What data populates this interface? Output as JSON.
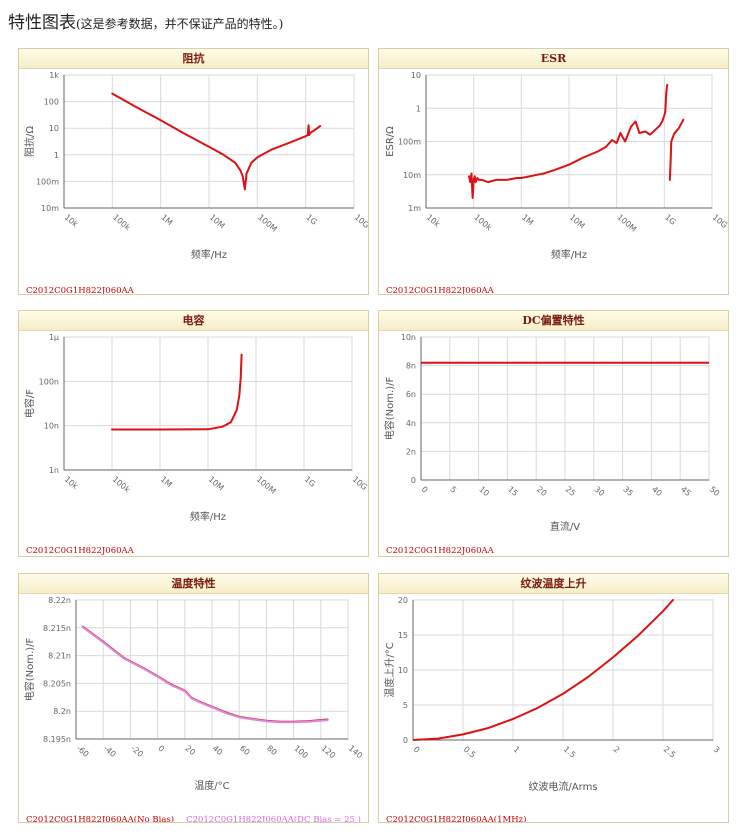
{
  "header": {
    "title": "特性图表",
    "note": "(这是参考数据，并不保证产品的特性。)"
  },
  "chart_data": [
    {
      "id": "impedance",
      "type": "line",
      "title": "阻抗",
      "xlabel": "频率/Hz",
      "ylabel": "阻抗/Ω",
      "xscale": "log",
      "yscale": "log",
      "xlim": [
        10000,
        10000000000
      ],
      "ylim": [
        0.01,
        1000
      ],
      "xticks": [
        10000,
        100000,
        1000000,
        10000000,
        100000000,
        1000000000,
        10000000000
      ],
      "xticklabels": [
        "10k",
        "100k",
        "1M",
        "10M",
        "100M",
        "1G",
        "10G"
      ],
      "yticks": [
        0.01,
        0.1,
        1,
        10,
        100,
        1000
      ],
      "yticklabels": [
        "10m",
        "100m",
        "1",
        "10",
        "100",
        "1k"
      ],
      "grid": true,
      "legend": [
        {
          "text": "C2012C0G1H822J060AA",
          "color": "#cc0000"
        }
      ],
      "series": [
        {
          "color": "#dd1111",
          "x": [
            100000,
            300000,
            1000000,
            3000000,
            10000000,
            20000000,
            35000000,
            45000000,
            50000000,
            55000000,
            60000000,
            75000000,
            100000000,
            200000000,
            500000000,
            1000000000,
            1100000000,
            1150000000,
            1180000000,
            1200000000,
            1300000000,
            1600000000,
            2000000000
          ],
          "y": [
            200,
            65,
            20,
            6.5,
            2,
            1,
            0.5,
            0.25,
            0.15,
            0.05,
            0.2,
            0.5,
            0.8,
            1.6,
            3,
            5,
            5.5,
            13,
            5.5,
            6,
            7,
            9,
            12
          ]
        }
      ]
    },
    {
      "id": "esr",
      "type": "line",
      "title": "ESR",
      "xlabel": "频率/Hz",
      "ylabel": "ESR/Ω",
      "xscale": "log",
      "yscale": "log",
      "xlim": [
        10000,
        10000000000
      ],
      "ylim": [
        0.001,
        10
      ],
      "xticks": [
        10000,
        100000,
        1000000,
        10000000,
        100000000,
        1000000000,
        10000000000
      ],
      "xticklabels": [
        "10k",
        "100k",
        "1M",
        "10M",
        "100M",
        "1G",
        "10G"
      ],
      "yticks": [
        0.001,
        0.01,
        0.1,
        1,
        10
      ],
      "yticklabels": [
        "1m",
        "10m",
        "100m",
        "1",
        "10"
      ],
      "grid": true,
      "legend": [
        {
          "text": "C2012C0G1H822J060AA",
          "color": "#cc0000"
        }
      ],
      "series": [
        {
          "color": "#dd1111",
          "x": [
            80000,
            85000,
            90000,
            95000,
            100000,
            105000,
            110000,
            120000,
            130000,
            150000,
            200000,
            300000,
            500000,
            800000,
            1000000,
            1500000,
            3000000,
            5000000,
            10000000,
            20000000,
            40000000,
            60000000,
            80000000,
            100000000,
            120000000,
            150000000,
            200000000,
            250000000,
            300000000,
            400000000,
            500000000,
            700000000,
            800000000,
            900000000,
            1000000000,
            1050000000,
            1100000000,
            1150000000
          ],
          "y": [
            0.009,
            0.006,
            0.011,
            0.002,
            0.007,
            0.009,
            0.006,
            0.008,
            0.007,
            0.007,
            0.006,
            0.007,
            0.007,
            0.008,
            0.008,
            0.009,
            0.011,
            0.014,
            0.02,
            0.033,
            0.05,
            0.07,
            0.11,
            0.09,
            0.18,
            0.1,
            0.28,
            0.4,
            0.18,
            0.2,
            0.16,
            0.25,
            0.3,
            0.4,
            0.6,
            0.8,
            3,
            5
          ]
        },
        {
          "color": "#dd1111",
          "x": [
            1300000000,
            1350000000,
            1400000000,
            1600000000,
            2000000000,
            2500000000
          ],
          "y": [
            0.007,
            0.02,
            0.1,
            0.17,
            0.25,
            0.45
          ]
        }
      ]
    },
    {
      "id": "capacitance",
      "type": "line",
      "title": "电容",
      "xlabel": "频率/Hz",
      "ylabel": "电容/F",
      "xscale": "log",
      "yscale": "log",
      "xlim": [
        10000,
        10000000000
      ],
      "ylim": [
        1e-09,
        1e-06
      ],
      "xticks": [
        10000,
        100000,
        1000000,
        10000000,
        100000000,
        1000000000,
        10000000000
      ],
      "xticklabels": [
        "10k",
        "100k",
        "1M",
        "10M",
        "100M",
        "1G",
        "10G"
      ],
      "yticks": [
        1e-09,
        1e-08,
        1e-07,
        1e-06
      ],
      "yticklabels": [
        "1n",
        "10n",
        "100n",
        "1μ"
      ],
      "grid": true,
      "legend": [
        {
          "text": "C2012C0G1H822J060AA",
          "color": "#cc0000"
        }
      ],
      "series": [
        {
          "color": "#dd1111",
          "x": [
            100000,
            1000000,
            10000000,
            20000000,
            30000000,
            40000000,
            45000000,
            48000000,
            50000000
          ],
          "y": [
            8.2e-09,
            8.2e-09,
            8.3e-09,
            9.5e-09,
            1.2e-08,
            2.3e-08,
            5e-08,
            1.2e-07,
            4e-07
          ]
        }
      ]
    },
    {
      "id": "dc-bias",
      "type": "line",
      "title": "DC偏置特性",
      "xlabel": "直流/V",
      "ylabel": "电容(Nom.)/F",
      "xlim": [
        0,
        50
      ],
      "ylim": [
        0,
        1e-08
      ],
      "xticks": [
        0,
        5,
        10,
        15,
        20,
        25,
        30,
        35,
        40,
        45,
        50
      ],
      "xticklabels": [
        "0",
        "5",
        "10",
        "15",
        "20",
        "25",
        "30",
        "35",
        "40",
        "45",
        "50"
      ],
      "yticks": [
        0,
        2e-09,
        4e-09,
        6e-09,
        8e-09,
        1e-08
      ],
      "yticklabels": [
        "0",
        "2n",
        "4n",
        "6n",
        "8n",
        "10n"
      ],
      "grid": true,
      "legend": [
        {
          "text": "C2012C0G1H822J060AA",
          "color": "#cc0000"
        }
      ],
      "series": [
        {
          "color": "#dd1111",
          "x": [
            0,
            50
          ],
          "y": [
            8.2e-09,
            8.2e-09
          ]
        }
      ]
    },
    {
      "id": "temperature",
      "type": "line",
      "title": "温度特性",
      "xlabel": "温度/°C",
      "ylabel": "电容(Nom.)/F",
      "xlim": [
        -60,
        140
      ],
      "ylim": [
        8.195e-09,
        8.22e-09
      ],
      "xticks": [
        -60,
        -40,
        -20,
        0,
        20,
        40,
        60,
        80,
        100,
        120,
        140
      ],
      "xticklabels": [
        "-60",
        "-40",
        "-20",
        "0",
        "20",
        "40",
        "60",
        "80",
        "100",
        "120",
        "140"
      ],
      "yticks": [
        8.195e-09,
        8.2e-09,
        8.205e-09,
        8.21e-09,
        8.215e-09,
        8.22e-09
      ],
      "yticklabels": [
        "8.195n",
        "8.2n",
        "8.205n",
        "8.21n",
        "8.215n",
        "8.22n"
      ],
      "grid": true,
      "legend": [
        {
          "text": "C2012C0G1H822J060AA(No Bias)",
          "color": "#cc0000"
        },
        {
          "text": "C2012C0G1H822J060AA(DC Bias = 25 )",
          "color": "#dd66dd"
        }
      ],
      "series": [
        {
          "color": "#dd1111",
          "x": [
            -55,
            -40,
            -25,
            -10,
            0,
            10,
            20,
            25,
            30,
            40,
            50,
            60,
            70,
            80,
            90,
            100,
            110,
            120,
            125
          ],
          "y": [
            8.2152e-09,
            8.2125e-09,
            8.2096e-09,
            8.2077e-09,
            8.2063e-09,
            8.2048e-09,
            8.2037e-09,
            8.2024e-09,
            8.2018e-09,
            8.2008e-09,
            8.1998e-09,
            8.199e-09,
            8.1986e-09,
            8.1983e-09,
            8.1981e-09,
            8.1981e-09,
            8.1982e-09,
            8.1984e-09,
            8.1985e-09
          ]
        },
        {
          "color": "#dd88dd",
          "x": [
            -55,
            -40,
            -25,
            -10,
            0,
            10,
            20,
            25,
            30,
            40,
            50,
            60,
            70,
            80,
            90,
            100,
            110,
            120,
            125
          ],
          "y": [
            8.2151e-09,
            8.2124e-09,
            8.2095e-09,
            8.2076e-09,
            8.2062e-09,
            8.2047e-09,
            8.2036e-09,
            8.2023e-09,
            8.2017e-09,
            8.2007e-09,
            8.1997e-09,
            8.1989e-09,
            8.1985e-09,
            8.1982e-09,
            8.198e-09,
            8.198e-09,
            8.1981e-09,
            8.1983e-09,
            8.1984e-09
          ]
        }
      ]
    },
    {
      "id": "ripple",
      "type": "line",
      "title": "纹波温度上升",
      "xlabel": "纹波电流/Arms",
      "ylabel": "温度上升/°C",
      "xlim": [
        0,
        3
      ],
      "ylim": [
        0,
        20
      ],
      "xticks": [
        0,
        0.5,
        1,
        1.5,
        2,
        2.5,
        3
      ],
      "xticklabels": [
        "0",
        "0.5",
        "1",
        "1.5",
        "2",
        "2.5",
        "3"
      ],
      "yticks": [
        0,
        5,
        10,
        15,
        20
      ],
      "yticklabels": [
        "0",
        "5",
        "10",
        "15",
        "20"
      ],
      "grid": true,
      "legend": [
        {
          "text": "C2012C0G1H822J060AA(1MHz)",
          "color": "#cc0000"
        }
      ],
      "series": [
        {
          "color": "#dd1111",
          "x": [
            0,
            0.25,
            0.5,
            0.75,
            1,
            1.25,
            1.5,
            1.75,
            2,
            2.25,
            2.5,
            2.6
          ],
          "y": [
            0,
            0.2,
            0.8,
            1.7,
            3,
            4.6,
            6.6,
            9,
            11.8,
            14.9,
            18.4,
            20
          ]
        }
      ]
    }
  ]
}
